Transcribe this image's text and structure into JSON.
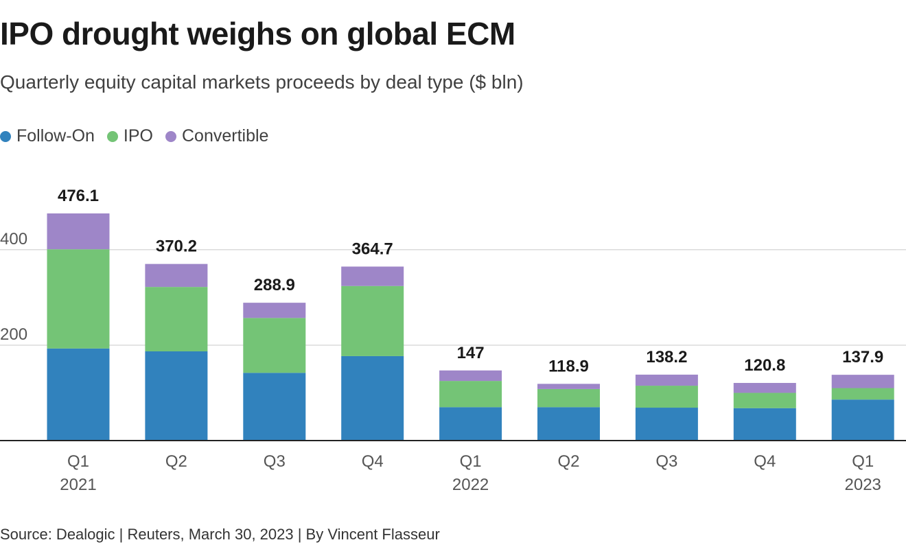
{
  "header": {
    "title": "IPO drought weighs on global ECM",
    "subtitle": "Quarterly equity capital markets proceeds by deal type ($ bln)"
  },
  "legend": [
    {
      "name": "Follow-On",
      "color": "#3182bd"
    },
    {
      "name": "IPO",
      "color": "#74c476"
    },
    {
      "name": "Convertible",
      "color": "#9e86c8"
    }
  ],
  "footer": {
    "source": "Source: Dealogic | Reuters, March 30, 2023 | By Vincent Flasseur"
  },
  "chart_data": {
    "type": "bar",
    "stacked": true,
    "title": "IPO drought weighs on global ECM",
    "subtitle": "Quarterly equity capital markets proceeds by deal type ($ bln)",
    "categories": [
      {
        "quarter": "Q1",
        "year": "2021"
      },
      {
        "quarter": "Q2",
        "year": ""
      },
      {
        "quarter": "Q3",
        "year": ""
      },
      {
        "quarter": "Q4",
        "year": ""
      },
      {
        "quarter": "Q1",
        "year": "2022"
      },
      {
        "quarter": "Q2",
        "year": ""
      },
      {
        "quarter": "Q3",
        "year": ""
      },
      {
        "quarter": "Q4",
        "year": ""
      },
      {
        "quarter": "Q1",
        "year": "2023"
      }
    ],
    "series": [
      {
        "name": "Follow-On",
        "color": "#3182bd",
        "values": [
          193,
          187,
          142,
          177,
          70,
          70,
          69,
          68,
          86
        ]
      },
      {
        "name": "IPO",
        "color": "#74c476",
        "values": [
          208,
          135,
          115,
          147,
          55,
          38,
          46,
          32,
          24
        ]
      },
      {
        "name": "Convertible",
        "color": "#9e86c8",
        "values": [
          75.1,
          48.2,
          31.9,
          40.7,
          22,
          10.9,
          23.2,
          20.8,
          27.9
        ]
      }
    ],
    "totals": [
      "476.1",
      "370.2",
      "288.9",
      "364.7",
      "147",
      "118.9",
      "138.2",
      "120.8",
      "137.9"
    ],
    "ylim": [
      0,
      476.1
    ],
    "yticks": [
      200,
      400
    ],
    "grid": true,
    "legend_position": "top-left"
  }
}
